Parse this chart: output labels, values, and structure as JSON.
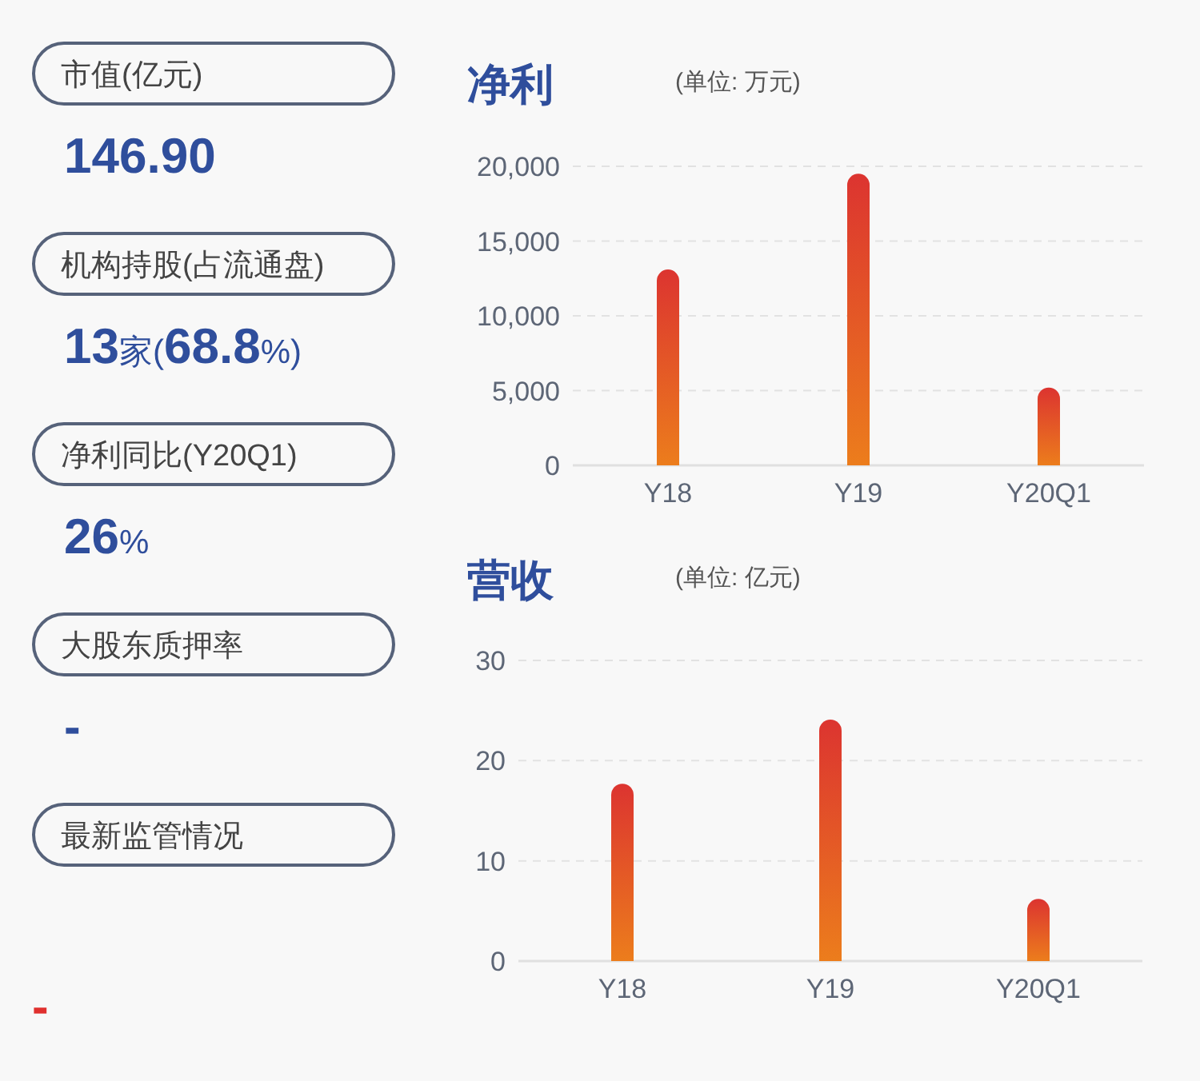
{
  "chart_data": [
    {
      "type": "other",
      "annotations": [
        "市值(亿元)",
        "146.90",
        "机构持股(占流通盘)",
        "13家(68.8%)",
        "净利同比(Y20Q1)",
        "26%",
        "大股东质押率",
        "-",
        "最新监管情况",
        "-"
      ],
      "colors": [
        "#2f4e9c",
        "#2f4e9c",
        "#2f4e9c",
        "#2f4e9c",
        "#e0302e"
      ]
    },
    {
      "type": "bar",
      "title": "净利",
      "subtitle": "(单位: 万元)",
      "categories": [
        "Y18",
        "Y19",
        "Y20Q1"
      ],
      "values": [
        13100,
        19500,
        5200
      ],
      "color": "#dc3430",
      "ylim": [
        0,
        20000
      ],
      "yticks": [
        {
          "value": 0,
          "label": "0"
        },
        {
          "value": 5000,
          "label": "5,000"
        },
        {
          "value": 10000,
          "label": "10,000"
        },
        {
          "value": 15000,
          "label": "15,000"
        },
        {
          "value": 20000,
          "label": "20,000"
        }
      ],
      "grid": "y"
    },
    {
      "type": "bar",
      "title": "营收",
      "subtitle": "(单位: 亿元)",
      "categories": [
        "Y18",
        "Y19",
        "Y20Q1"
      ],
      "values": [
        17.7,
        24.1,
        6.2
      ],
      "color": "#dc3430",
      "ylim": [
        0,
        30
      ],
      "yticks": [
        0,
        10,
        20,
        30
      ],
      "grid": "y"
    }
  ]
}
